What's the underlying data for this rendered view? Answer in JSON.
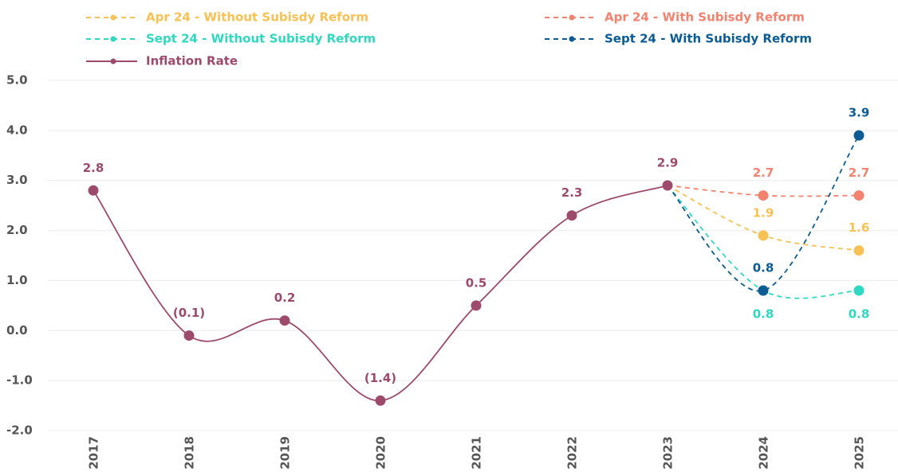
{
  "chart_data": {
    "type": "line",
    "categories": [
      "2017",
      "2018",
      "2019",
      "2020",
      "2021",
      "2022",
      "2023",
      "2024",
      "2025"
    ],
    "series": [
      {
        "name": "Apr 24 - Without Subisdy Reform",
        "color": "#f9c153",
        "dashed": true,
        "values": [
          null,
          null,
          null,
          null,
          null,
          null,
          2.9,
          1.9,
          1.6
        ],
        "value_labels": [
          null,
          null,
          null,
          null,
          null,
          null,
          null,
          "1.9",
          "1.6"
        ]
      },
      {
        "name": "Apr 24 - With Subisdy Reform",
        "color": "#f4826f",
        "dashed": true,
        "values": [
          null,
          null,
          null,
          null,
          null,
          null,
          2.9,
          2.7,
          2.7
        ],
        "value_labels": [
          null,
          null,
          null,
          null,
          null,
          null,
          null,
          "2.7",
          "2.7"
        ]
      },
      {
        "name": "Sept 24 - Without Subisdy Reform",
        "color": "#2fd9c1",
        "dashed": true,
        "values": [
          null,
          null,
          null,
          null,
          null,
          null,
          2.9,
          0.8,
          0.8
        ],
        "value_labels": [
          null,
          null,
          null,
          null,
          null,
          null,
          null,
          "0.8",
          "0.8"
        ]
      },
      {
        "name": "Sept 24 - With Subisdy Reform",
        "color": "#0b5c94",
        "dashed": true,
        "values": [
          null,
          null,
          null,
          null,
          null,
          null,
          2.9,
          0.8,
          3.9
        ],
        "value_labels": [
          null,
          null,
          null,
          null,
          null,
          null,
          null,
          "0.8",
          "3.9"
        ]
      },
      {
        "name": "Inflation Rate",
        "color": "#9e4a6c",
        "dashed": false,
        "values": [
          2.8,
          -0.1,
          0.2,
          -1.4,
          0.5,
          2.3,
          2.9,
          null,
          null
        ],
        "value_labels": [
          "2.8",
          "(0.1)",
          "0.2",
          "(1.4)",
          "0.5",
          "2.3",
          "2.9",
          null,
          null
        ]
      }
    ],
    "ylim": [
      -2,
      5
    ],
    "yticks": [
      {
        "value": -2,
        "label": "-2.0"
      },
      {
        "value": -1,
        "label": "-1.0"
      },
      {
        "value": 0,
        "label": "0.0"
      },
      {
        "value": 1,
        "label": "1.0"
      },
      {
        "value": 2,
        "label": "2.0"
      },
      {
        "value": 3,
        "label": "3.0"
      },
      {
        "value": 4,
        "label": "4.0"
      },
      {
        "value": 5,
        "label": "5.0"
      }
    ],
    "grid": true,
    "legend": "top"
  }
}
